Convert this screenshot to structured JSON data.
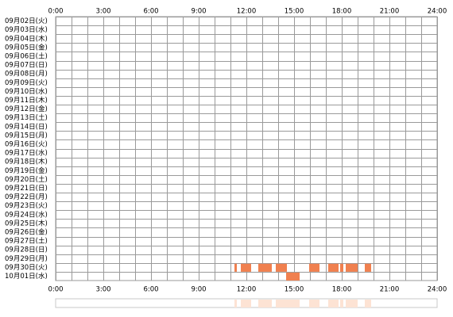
{
  "chart_data": {
    "type": "timeline",
    "categories": [
      "09月02日(火)",
      "09月03日(水)",
      "09月04日(木)",
      "09月05日(金)",
      "09月06日(土)",
      "09月07日(日)",
      "09月08日(月)",
      "09月09日(火)",
      "09月10日(水)",
      "09月11日(木)",
      "09月12日(金)",
      "09月13日(土)",
      "09月14日(日)",
      "09月15日(月)",
      "09月16日(火)",
      "09月17日(水)",
      "09月18日(木)",
      "09月19日(金)",
      "09月20日(土)",
      "09月21日(日)",
      "09月22日(月)",
      "09月23日(火)",
      "09月24日(水)",
      "09月25日(木)",
      "09月26日(金)",
      "09月27日(土)",
      "09月28日(日)",
      "09月29日(月)",
      "09月30日(火)",
      "10月01日(水)"
    ],
    "values": [
      [],
      [],
      [],
      [],
      [],
      [],
      [],
      [],
      [],
      [],
      [],
      [],
      [],
      [],
      [],
      [],
      [],
      [],
      [],
      [],
      [],
      [],
      [],
      [],
      [],
      [],
      [],
      [],
      [
        [
          11.25,
          11.4
        ],
        [
          11.65,
          12.3
        ],
        [
          12.75,
          13.6
        ],
        [
          13.85,
          14.55
        ],
        [
          15.95,
          16.6
        ],
        [
          17.15,
          17.8
        ],
        [
          17.9,
          18.1
        ],
        [
          18.25,
          19.0
        ],
        [
          19.45,
          19.85
        ]
      ],
      [
        [
          14.5,
          15.35
        ]
      ]
    ],
    "color": "#f0804f",
    "summary_color": "#fde3d4",
    "xlim": [
      0,
      24
    ],
    "xticks": [
      {
        "value": 0,
        "label": "0:00"
      },
      {
        "value": 3,
        "label": "3:00"
      },
      {
        "value": 6,
        "label": "6:00"
      },
      {
        "value": 9,
        "label": "9:00"
      },
      {
        "value": 12,
        "label": "12:00"
      },
      {
        "value": 15,
        "label": "15:00"
      },
      {
        "value": 18,
        "label": "18:00"
      },
      {
        "value": 21,
        "label": "21:00"
      },
      {
        "value": 24,
        "label": "24:00"
      }
    ],
    "grid": true
  }
}
